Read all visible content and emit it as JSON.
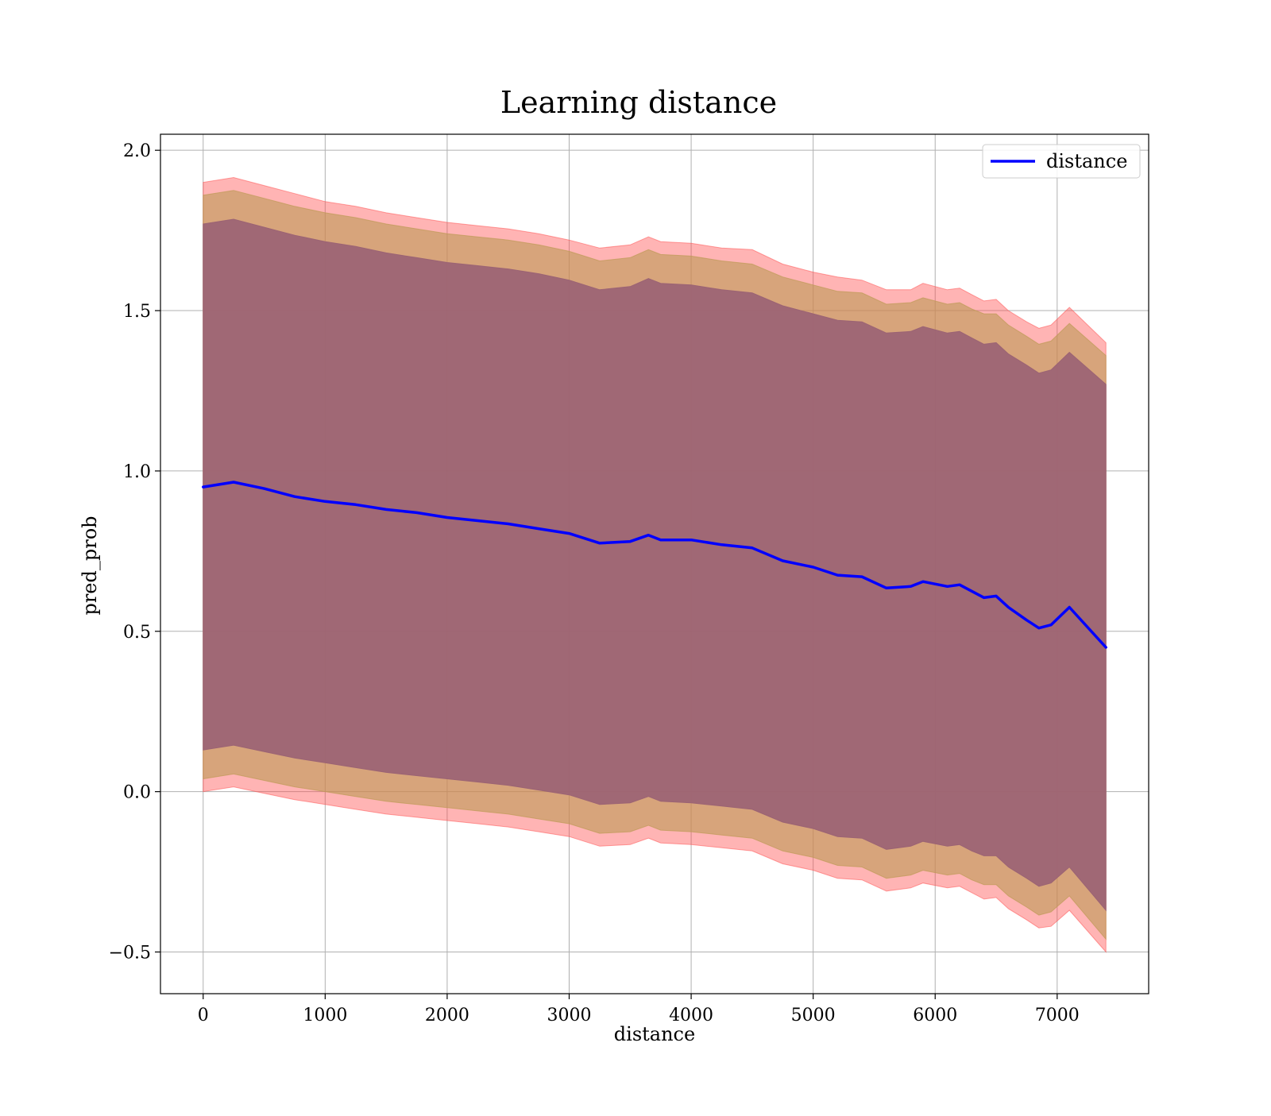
{
  "chart_data": {
    "type": "line",
    "title": "Learning distance",
    "xlabel": "distance",
    "ylabel": "pred_prob",
    "xlim": [
      -350,
      7750
    ],
    "ylim": [
      -0.63,
      2.05
    ],
    "grid": true,
    "legend_position": "top-right",
    "x_ticks": [
      0,
      1000,
      2000,
      3000,
      4000,
      5000,
      6000,
      7000
    ],
    "x_tick_labels": [
      "0",
      "1000",
      "2000",
      "3000",
      "4000",
      "5000",
      "6000",
      "7000"
    ],
    "y_ticks": [
      -0.5,
      0.0,
      0.5,
      1.0,
      1.5,
      2.0
    ],
    "y_tick_labels": [
      "−0.5",
      "0.0",
      "0.5",
      "1.0",
      "1.5",
      "2.0"
    ],
    "x": [
      0,
      250,
      500,
      750,
      1000,
      1250,
      1500,
      1750,
      2000,
      2250,
      2500,
      2750,
      3000,
      3250,
      3500,
      3650,
      3750,
      4000,
      4250,
      4500,
      4750,
      5000,
      5200,
      5400,
      5600,
      5800,
      5900,
      6100,
      6200,
      6300,
      6400,
      6500,
      6600,
      6750,
      6850,
      6950,
      7100,
      7400
    ],
    "series": [
      {
        "name": "distance",
        "color": "#0000ff",
        "values": [
          0.95,
          0.965,
          0.945,
          0.92,
          0.905,
          0.895,
          0.88,
          0.87,
          0.855,
          0.845,
          0.835,
          0.82,
          0.805,
          0.775,
          0.78,
          0.8,
          0.785,
          0.785,
          0.77,
          0.76,
          0.72,
          0.7,
          0.675,
          0.67,
          0.635,
          0.64,
          0.655,
          0.64,
          0.645,
          0.625,
          0.605,
          0.61,
          0.575,
          0.535,
          0.51,
          0.52,
          0.575,
          0.45
        ]
      }
    ],
    "bands": [
      {
        "role": "outer",
        "color": "#ff4d4d",
        "opacity": 0.42,
        "upper": [
          1.9,
          1.915,
          1.89,
          1.865,
          1.84,
          1.825,
          1.805,
          1.79,
          1.775,
          1.765,
          1.755,
          1.74,
          1.72,
          1.695,
          1.705,
          1.73,
          1.715,
          1.71,
          1.695,
          1.69,
          1.645,
          1.62,
          1.605,
          1.595,
          1.565,
          1.565,
          1.585,
          1.565,
          1.57,
          1.55,
          1.53,
          1.535,
          1.5,
          1.465,
          1.445,
          1.455,
          1.51,
          1.4
        ],
        "lower": [
          0.0,
          0.015,
          -0.005,
          -0.025,
          -0.04,
          -0.055,
          -0.07,
          -0.08,
          -0.09,
          -0.1,
          -0.11,
          -0.125,
          -0.14,
          -0.17,
          -0.165,
          -0.145,
          -0.16,
          -0.165,
          -0.175,
          -0.185,
          -0.225,
          -0.245,
          -0.27,
          -0.275,
          -0.31,
          -0.3,
          -0.285,
          -0.3,
          -0.295,
          -0.315,
          -0.335,
          -0.33,
          -0.365,
          -0.4,
          -0.425,
          -0.42,
          -0.37,
          -0.5
        ]
      },
      {
        "role": "middle",
        "color": "#bd9a55",
        "opacity": 0.6,
        "upper": [
          1.86,
          1.875,
          1.85,
          1.825,
          1.805,
          1.79,
          1.77,
          1.755,
          1.74,
          1.73,
          1.72,
          1.705,
          1.685,
          1.655,
          1.665,
          1.69,
          1.675,
          1.67,
          1.655,
          1.645,
          1.605,
          1.58,
          1.56,
          1.555,
          1.52,
          1.525,
          1.54,
          1.52,
          1.525,
          1.505,
          1.49,
          1.49,
          1.455,
          1.42,
          1.395,
          1.405,
          1.46,
          1.36
        ],
        "lower": [
          0.04,
          0.055,
          0.035,
          0.015,
          0.0,
          -0.015,
          -0.03,
          -0.04,
          -0.05,
          -0.06,
          -0.07,
          -0.085,
          -0.1,
          -0.13,
          -0.125,
          -0.105,
          -0.12,
          -0.125,
          -0.135,
          -0.145,
          -0.185,
          -0.205,
          -0.23,
          -0.235,
          -0.27,
          -0.26,
          -0.245,
          -0.26,
          -0.255,
          -0.275,
          -0.29,
          -0.29,
          -0.325,
          -0.36,
          -0.385,
          -0.375,
          -0.325,
          -0.46
        ]
      },
      {
        "role": "inner",
        "color": "#9b6374",
        "opacity": 0.92,
        "upper": [
          1.77,
          1.785,
          1.76,
          1.735,
          1.715,
          1.7,
          1.68,
          1.665,
          1.65,
          1.64,
          1.63,
          1.615,
          1.595,
          1.565,
          1.575,
          1.6,
          1.585,
          1.58,
          1.565,
          1.555,
          1.515,
          1.49,
          1.47,
          1.465,
          1.43,
          1.435,
          1.45,
          1.43,
          1.435,
          1.415,
          1.395,
          1.4,
          1.365,
          1.33,
          1.305,
          1.315,
          1.37,
          1.27
        ],
        "lower": [
          0.13,
          0.145,
          0.125,
          0.105,
          0.09,
          0.075,
          0.06,
          0.05,
          0.04,
          0.03,
          0.02,
          0.005,
          -0.01,
          -0.04,
          -0.035,
          -0.015,
          -0.03,
          -0.035,
          -0.045,
          -0.055,
          -0.095,
          -0.115,
          -0.14,
          -0.145,
          -0.18,
          -0.17,
          -0.155,
          -0.17,
          -0.165,
          -0.185,
          -0.2,
          -0.2,
          -0.235,
          -0.27,
          -0.295,
          -0.285,
          -0.235,
          -0.37
        ]
      }
    ],
    "legend": [
      {
        "label": "distance",
        "color": "#0000ff"
      }
    ]
  }
}
